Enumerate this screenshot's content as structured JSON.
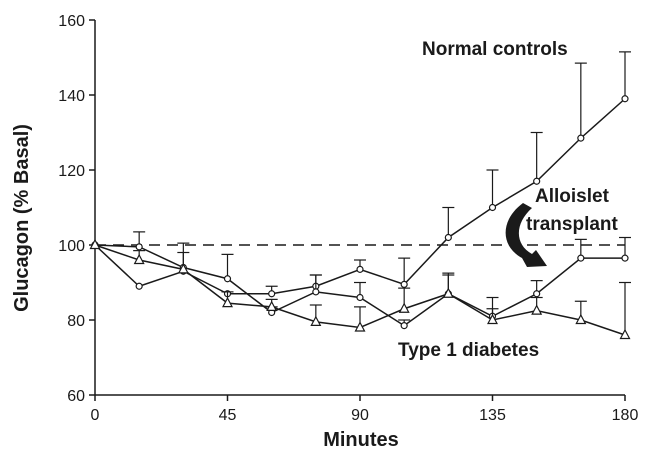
{
  "chart_data": {
    "type": "line",
    "xlabel": "Minutes",
    "ylabel": "Glucagon (% Basal)",
    "xlim": [
      0,
      180
    ],
    "ylim": [
      60,
      160
    ],
    "x_ticks": [
      0,
      45,
      90,
      135,
      180
    ],
    "y_ticks": [
      60,
      80,
      100,
      120,
      140,
      160
    ],
    "grid": false,
    "reference_line": {
      "y": 100,
      "style": "dashed"
    },
    "x": [
      0,
      15,
      30,
      45,
      60,
      75,
      90,
      105,
      120,
      135,
      150,
      165,
      180
    ],
    "series": [
      {
        "name": "Normal controls",
        "marker": "circle",
        "values": [
          100,
          89,
          93,
          87,
          87,
          89,
          93.5,
          89.5,
          102,
          110,
          117,
          128.5,
          139
        ],
        "error_up": [
          0,
          0,
          0,
          0,
          2,
          3,
          2.5,
          7,
          8,
          10,
          13,
          20,
          12.5
        ]
      },
      {
        "name": "Alloislet transplant",
        "marker": "circle",
        "values": [
          100,
          99.5,
          94,
          91,
          82,
          87.5,
          86,
          78.5,
          87,
          81,
          87,
          96.5,
          96.5
        ],
        "error_up": [
          0,
          4,
          6.5,
          6.5,
          1.5,
          4.5,
          4,
          1.5,
          5.5,
          5,
          3.5,
          5,
          5.5
        ]
      },
      {
        "name": "Type 1 diabetes",
        "marker": "triangle",
        "values": [
          100,
          96,
          93.5,
          84.5,
          83.5,
          79.5,
          78,
          83,
          87,
          80,
          82.5,
          80,
          76
        ],
        "error_up": [
          0,
          2.5,
          4.5,
          3,
          2,
          4.5,
          5.5,
          5.5,
          5,
          3,
          3.5,
          5,
          14
        ]
      }
    ],
    "annotations": [
      {
        "text": "Normal controls",
        "line": ""
      },
      {
        "text": "Alloislet",
        "line": "transplant"
      },
      {
        "text": "Type 1 diabetes",
        "line": ""
      }
    ]
  }
}
